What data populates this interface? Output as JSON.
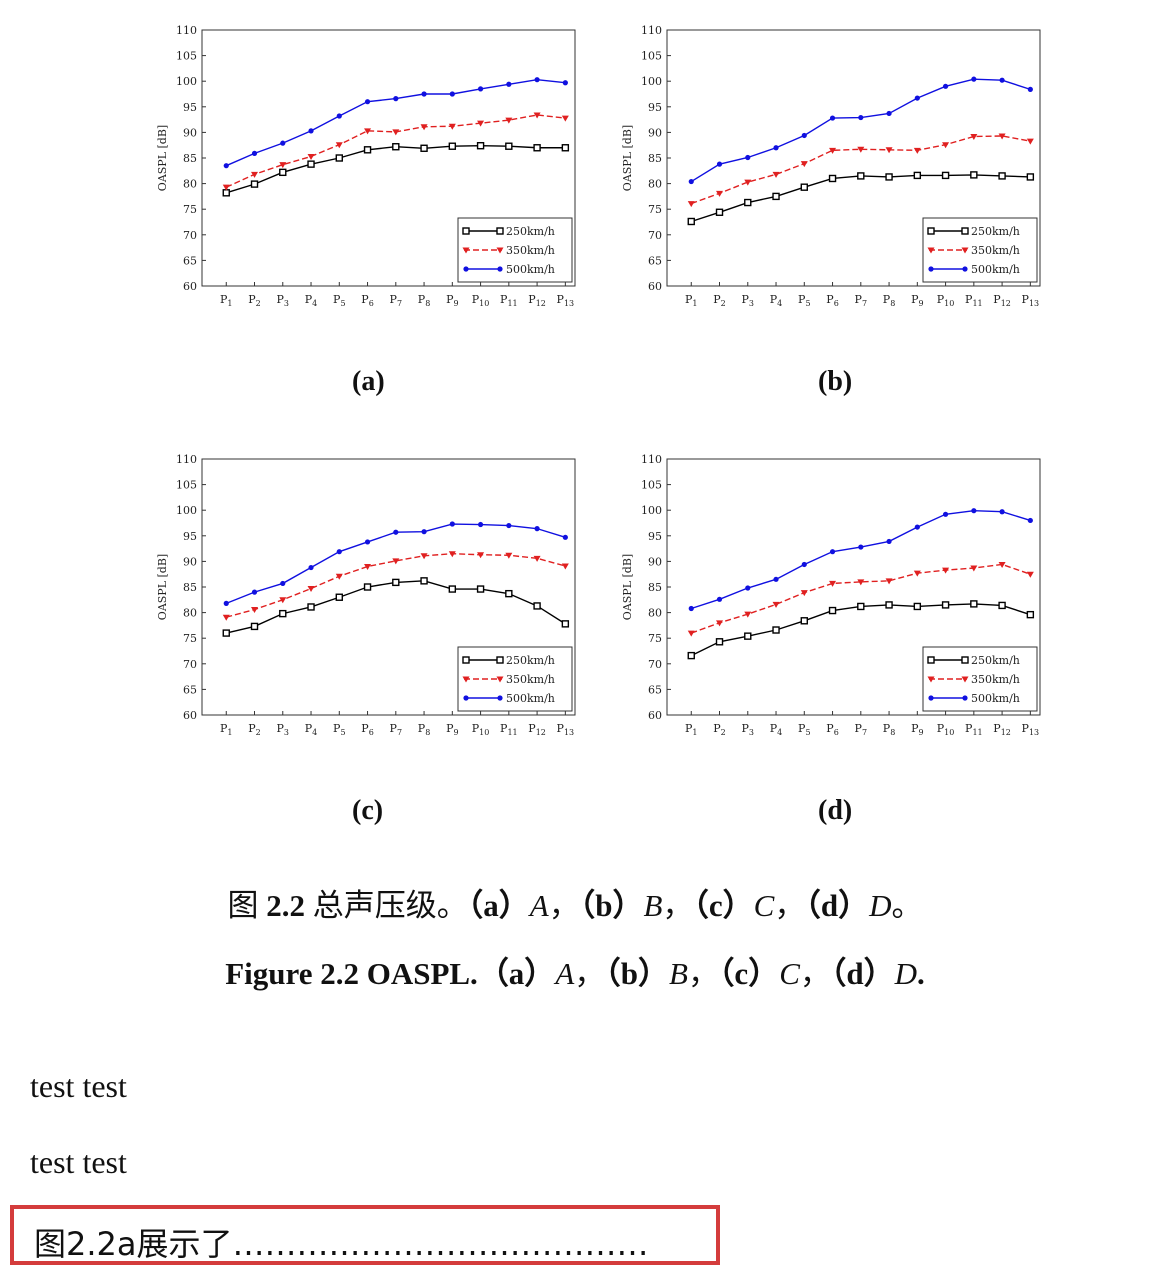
{
  "chart_data": [
    {
      "type": "line",
      "panel": "a",
      "ylabel": "OASPL [dB]",
      "xlabel": "",
      "ylim": [
        60,
        110
      ],
      "yticks": [
        60,
        65,
        70,
        75,
        80,
        85,
        90,
        95,
        100,
        105,
        110
      ],
      "categories": [
        "P1",
        "P2",
        "P3",
        "P4",
        "P5",
        "P6",
        "P7",
        "P8",
        "P9",
        "P10",
        "P11",
        "P12",
        "P13"
      ],
      "legend_position": "bottom-right",
      "series": [
        {
          "name": "250km/h",
          "color": "#000000",
          "marker": "square",
          "dash": "solid",
          "values": [
            78.2,
            79.9,
            82.2,
            83.8,
            85.0,
            86.6,
            87.2,
            86.9,
            87.3,
            87.4,
            87.3,
            87.0,
            87.0
          ]
        },
        {
          "name": "350km/h",
          "color": "#e02020",
          "marker": "tri",
          "dash": "dash",
          "values": [
            79.3,
            81.8,
            83.7,
            85.3,
            87.6,
            90.3,
            90.1,
            91.1,
            91.2,
            91.8,
            92.4,
            93.4,
            92.8
          ]
        },
        {
          "name": "500km/h",
          "color": "#1010e0",
          "marker": "dot",
          "dash": "solid",
          "values": [
            83.5,
            85.9,
            87.9,
            90.3,
            93.2,
            96.0,
            96.6,
            97.5,
            97.5,
            98.5,
            99.4,
            100.3,
            99.7
          ]
        }
      ]
    },
    {
      "type": "line",
      "panel": "b",
      "ylabel": "OASPL [dB]",
      "xlabel": "",
      "ylim": [
        60,
        110
      ],
      "yticks": [
        60,
        65,
        70,
        75,
        80,
        85,
        90,
        95,
        100,
        105,
        110
      ],
      "categories": [
        "P1",
        "P2",
        "P3",
        "P4",
        "P5",
        "P6",
        "P7",
        "P8",
        "P9",
        "P10",
        "P11",
        "P12",
        "P13"
      ],
      "legend_position": "bottom-right",
      "series": [
        {
          "name": "250km/h",
          "color": "#000000",
          "marker": "square",
          "dash": "solid",
          "values": [
            72.6,
            74.4,
            76.3,
            77.5,
            79.3,
            81.0,
            81.5,
            81.3,
            81.6,
            81.6,
            81.7,
            81.5,
            81.3
          ]
        },
        {
          "name": "350km/h",
          "color": "#e02020",
          "marker": "tri",
          "dash": "dash",
          "values": [
            76.1,
            78.1,
            80.3,
            81.8,
            83.9,
            86.5,
            86.7,
            86.6,
            86.5,
            87.6,
            89.2,
            89.3,
            88.3
          ]
        },
        {
          "name": "500km/h",
          "color": "#1010e0",
          "marker": "dot",
          "dash": "solid",
          "values": [
            80.4,
            83.8,
            85.1,
            87.0,
            89.4,
            92.8,
            92.9,
            93.7,
            96.7,
            99.0,
            100.4,
            100.2,
            98.4
          ]
        }
      ]
    },
    {
      "type": "line",
      "panel": "c",
      "ylabel": "OASPL [dB]",
      "xlabel": "",
      "ylim": [
        60,
        110
      ],
      "yticks": [
        60,
        65,
        70,
        75,
        80,
        85,
        90,
        95,
        100,
        105,
        110
      ],
      "categories": [
        "P1",
        "P2",
        "P3",
        "P4",
        "P5",
        "P6",
        "P7",
        "P8",
        "P9",
        "P10",
        "P11",
        "P12",
        "P13"
      ],
      "legend_position": "bottom-right",
      "series": [
        {
          "name": "250km/h",
          "color": "#000000",
          "marker": "square",
          "dash": "solid",
          "values": [
            76.0,
            77.3,
            79.8,
            81.1,
            83.0,
            85.0,
            85.9,
            86.2,
            84.6,
            84.6,
            83.7,
            81.3,
            77.8
          ]
        },
        {
          "name": "350km/h",
          "color": "#e02020",
          "marker": "tri",
          "dash": "dash",
          "values": [
            79.1,
            80.6,
            82.5,
            84.7,
            87.1,
            89.0,
            90.1,
            91.1,
            91.5,
            91.3,
            91.2,
            90.6,
            89.1
          ]
        },
        {
          "name": "500km/h",
          "color": "#1010e0",
          "marker": "dot",
          "dash": "solid",
          "values": [
            81.8,
            84.0,
            85.7,
            88.8,
            91.9,
            93.8,
            95.7,
            95.8,
            97.3,
            97.2,
            97.0,
            96.4,
            94.7
          ]
        }
      ]
    },
    {
      "type": "line",
      "panel": "d",
      "ylabel": "OASPL [dB]",
      "xlabel": "",
      "ylim": [
        60,
        110
      ],
      "yticks": [
        60,
        65,
        70,
        75,
        80,
        85,
        90,
        95,
        100,
        105,
        110
      ],
      "categories": [
        "P1",
        "P2",
        "P3",
        "P4",
        "P5",
        "P6",
        "P7",
        "P8",
        "P9",
        "P10",
        "P11",
        "P12",
        "P13"
      ],
      "legend_position": "bottom-right",
      "series": [
        {
          "name": "250km/h",
          "color": "#000000",
          "marker": "square",
          "dash": "solid",
          "values": [
            71.6,
            74.3,
            75.4,
            76.6,
            78.4,
            80.4,
            81.2,
            81.5,
            81.2,
            81.5,
            81.7,
            81.4,
            79.6
          ]
        },
        {
          "name": "350km/h",
          "color": "#e02020",
          "marker": "tri",
          "dash": "dash",
          "values": [
            76.0,
            78.0,
            79.7,
            81.6,
            83.9,
            85.7,
            86.0,
            86.2,
            87.7,
            88.3,
            88.7,
            89.4,
            87.5
          ]
        },
        {
          "name": "500km/h",
          "color": "#1010e0",
          "marker": "dot",
          "dash": "solid",
          "values": [
            80.8,
            82.6,
            84.8,
            86.5,
            89.4,
            91.9,
            92.8,
            93.9,
            96.7,
            99.2,
            99.9,
            99.7,
            98.0
          ]
        }
      ]
    }
  ],
  "panel_labels": [
    "(a)",
    "(b)",
    "(c)",
    "(d)"
  ],
  "caption_cn": {
    "prefix": "图 ",
    "num": "2.2",
    "text": " 总声压级。",
    "a": "（a）",
    "A": "A",
    "sep1": "，",
    "b": "（b）",
    "B": "B",
    "sep2": "，",
    "c": "（c）",
    "C": "C",
    "sep3": "，",
    "d": "（d）",
    "D": "D",
    "end": "。"
  },
  "caption_en": {
    "head": "Figure 2.2 OASPL.",
    "a": "（a）",
    "A": "A",
    "sep1": "，",
    "b": "（b）",
    "B": "B",
    "sep2": "，",
    "c": "（c）",
    "C": "C",
    "sep3": "，",
    "d": "（d）",
    "D": "D",
    "end": "."
  },
  "body_lines": [
    "test test",
    "test test"
  ],
  "highlight_text": "图2.2a展示了…………………………………"
}
